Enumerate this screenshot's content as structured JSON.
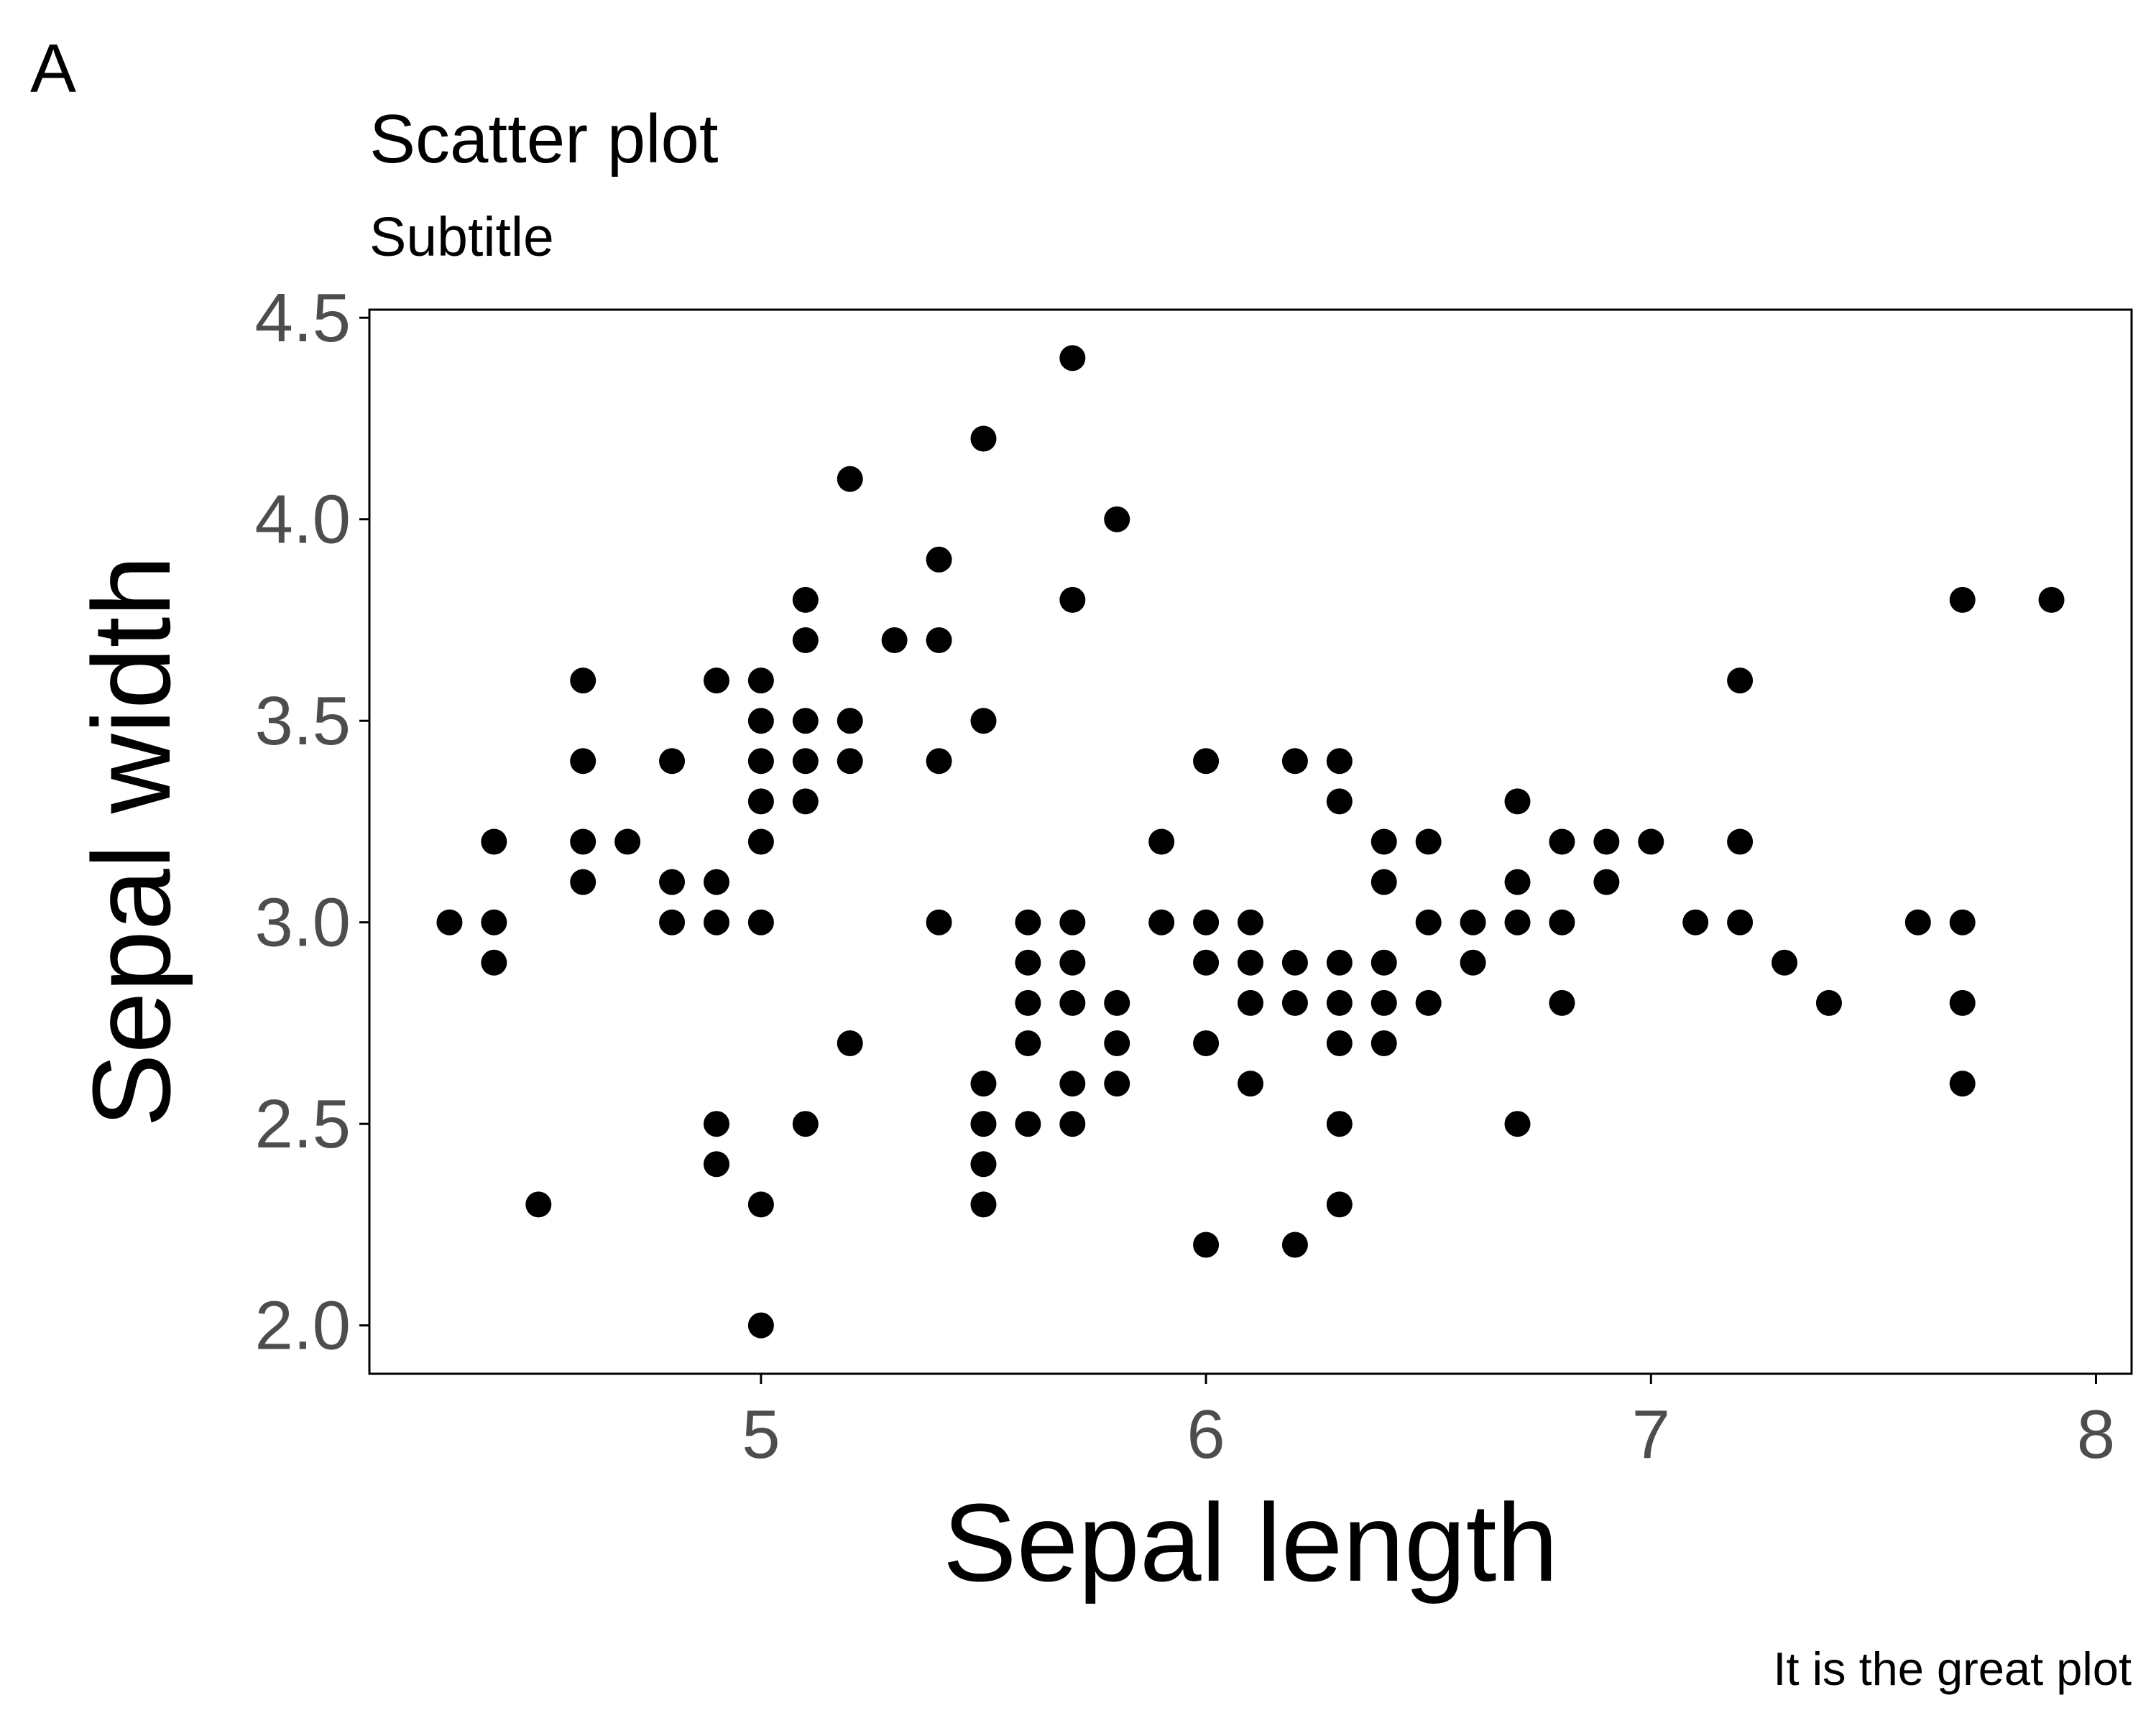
{
  "figure": {
    "panel_tag": "A",
    "caption": "It is the great plot"
  },
  "chart_data": {
    "type": "scatter",
    "title": "Scatter plot",
    "subtitle": "Subtitle",
    "xlabel": "Sepal length",
    "ylabel": "Sepal width",
    "xlim": [
      4.12,
      8.08
    ],
    "ylim": [
      1.88,
      4.52
    ],
    "x_ticks": [
      5,
      6,
      7,
      8
    ],
    "x_tick_labels": [
      "5",
      "6",
      "7",
      "8"
    ],
    "y_ticks": [
      2.0,
      2.5,
      3.0,
      3.5,
      4.0,
      4.5
    ],
    "y_tick_labels": [
      "2.0",
      "2.5",
      "3.0",
      "3.5",
      "4.0",
      "4.5"
    ],
    "grid": false,
    "legend": "none",
    "point_color": "#000000",
    "axis_text_color": "#4d4d4d",
    "series": [
      {
        "points": [
          [
            4.3,
            3.0
          ],
          [
            4.4,
            3.2
          ],
          [
            4.4,
            3.0
          ],
          [
            4.4,
            2.9
          ],
          [
            4.5,
            2.3
          ],
          [
            4.6,
            3.6
          ],
          [
            4.6,
            3.4
          ],
          [
            4.6,
            3.2
          ],
          [
            4.6,
            3.1
          ],
          [
            4.7,
            3.2
          ],
          [
            4.8,
            3.4
          ],
          [
            4.8,
            3.1
          ],
          [
            4.8,
            3.0
          ],
          [
            4.9,
            3.6
          ],
          [
            4.9,
            3.1
          ],
          [
            4.9,
            3.0
          ],
          [
            4.9,
            2.5
          ],
          [
            4.9,
            2.4
          ],
          [
            5.0,
            3.6
          ],
          [
            5.0,
            3.5
          ],
          [
            5.0,
            3.4
          ],
          [
            5.0,
            3.3
          ],
          [
            5.0,
            3.2
          ],
          [
            5.0,
            3.0
          ],
          [
            5.0,
            2.3
          ],
          [
            5.0,
            2.0
          ],
          [
            5.1,
            3.8
          ],
          [
            5.1,
            3.7
          ],
          [
            5.1,
            3.5
          ],
          [
            5.1,
            3.4
          ],
          [
            5.1,
            3.3
          ],
          [
            5.1,
            2.5
          ],
          [
            5.2,
            4.1
          ],
          [
            5.2,
            3.5
          ],
          [
            5.2,
            3.4
          ],
          [
            5.2,
            2.7
          ],
          [
            5.3,
            3.7
          ],
          [
            5.4,
            3.9
          ],
          [
            5.4,
            3.7
          ],
          [
            5.4,
            3.4
          ],
          [
            5.4,
            3.0
          ],
          [
            5.5,
            4.2
          ],
          [
            5.5,
            3.5
          ],
          [
            5.5,
            2.6
          ],
          [
            5.5,
            2.5
          ],
          [
            5.5,
            2.4
          ],
          [
            5.5,
            2.3
          ],
          [
            5.6,
            3.0
          ],
          [
            5.6,
            2.9
          ],
          [
            5.6,
            2.8
          ],
          [
            5.6,
            2.7
          ],
          [
            5.6,
            2.5
          ],
          [
            5.7,
            4.4
          ],
          [
            5.7,
            3.8
          ],
          [
            5.7,
            3.0
          ],
          [
            5.7,
            2.9
          ],
          [
            5.7,
            2.8
          ],
          [
            5.7,
            2.6
          ],
          [
            5.7,
            2.5
          ],
          [
            5.8,
            4.0
          ],
          [
            5.8,
            2.8
          ],
          [
            5.8,
            2.7
          ],
          [
            5.8,
            2.6
          ],
          [
            5.9,
            3.2
          ],
          [
            5.9,
            3.0
          ],
          [
            6.0,
            3.4
          ],
          [
            6.0,
            3.0
          ],
          [
            6.0,
            2.9
          ],
          [
            6.0,
            2.7
          ],
          [
            6.0,
            2.2
          ],
          [
            6.1,
            3.0
          ],
          [
            6.1,
            2.9
          ],
          [
            6.1,
            2.8
          ],
          [
            6.1,
            2.6
          ],
          [
            6.2,
            3.4
          ],
          [
            6.2,
            2.9
          ],
          [
            6.2,
            2.8
          ],
          [
            6.2,
            2.2
          ],
          [
            6.3,
            3.4
          ],
          [
            6.3,
            3.3
          ],
          [
            6.3,
            2.9
          ],
          [
            6.3,
            2.8
          ],
          [
            6.3,
            2.7
          ],
          [
            6.3,
            2.5
          ],
          [
            6.3,
            2.3
          ],
          [
            6.4,
            3.2
          ],
          [
            6.4,
            3.1
          ],
          [
            6.4,
            2.9
          ],
          [
            6.4,
            2.8
          ],
          [
            6.4,
            2.7
          ],
          [
            6.5,
            3.2
          ],
          [
            6.5,
            3.0
          ],
          [
            6.5,
            2.8
          ],
          [
            6.6,
            3.0
          ],
          [
            6.6,
            2.9
          ],
          [
            6.7,
            3.3
          ],
          [
            6.7,
            3.1
          ],
          [
            6.7,
            3.0
          ],
          [
            6.7,
            2.5
          ],
          [
            6.8,
            3.2
          ],
          [
            6.8,
            3.0
          ],
          [
            6.8,
            2.8
          ],
          [
            6.9,
            3.2
          ],
          [
            6.9,
            3.1
          ],
          [
            7.0,
            3.2
          ],
          [
            7.1,
            3.0
          ],
          [
            7.2,
            3.6
          ],
          [
            7.2,
            3.2
          ],
          [
            7.2,
            3.0
          ],
          [
            7.3,
            2.9
          ],
          [
            7.4,
            2.8
          ],
          [
            7.6,
            3.0
          ],
          [
            7.7,
            3.8
          ],
          [
            7.7,
            3.0
          ],
          [
            7.7,
            2.8
          ],
          [
            7.7,
            2.6
          ],
          [
            7.9,
            3.8
          ]
        ]
      }
    ]
  }
}
